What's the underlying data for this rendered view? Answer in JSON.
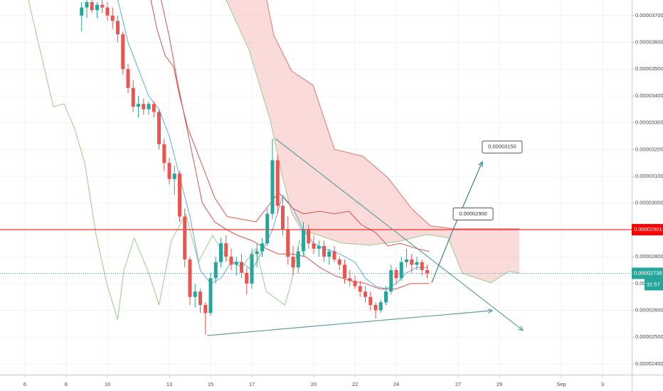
{
  "chart_data": {
    "type": "candlestick",
    "up_color": "#26a69a",
    "down_color": "#ef5350",
    "grid": true,
    "xlim": [
      4.793,
      35.414
    ],
    "xticks": [
      6,
      8,
      10,
      13,
      15,
      17,
      20,
      22,
      24,
      27,
      29,
      {
        "value": 32,
        "label": "Sep"
      },
      {
        "value": 34,
        "label": "3"
      }
    ],
    "ylim": [
      2.36e-05,
      3.758e-05
    ],
    "yticks": [
      {
        "value": 2.4e-05,
        "label": "0.00002400"
      },
      {
        "value": 2.5e-05,
        "label": "0.00002500"
      },
      {
        "value": 2.6e-05,
        "label": "0.00002600"
      },
      {
        "value": 2.7e-05,
        "label": "0.00002700"
      },
      {
        "value": 2.8e-05,
        "label": "0.00002800"
      },
      {
        "value": 2.9e-05,
        "label": "0.00002900"
      },
      {
        "value": 3e-05,
        "label": "0.00003000"
      },
      {
        "value": 3.1e-05,
        "label": "0.00003100"
      },
      {
        "value": 3.2e-05,
        "label": "0.00003200"
      },
      {
        "value": 3.3e-05,
        "label": "0.00003300"
      },
      {
        "value": 3.4e-05,
        "label": "0.00003400"
      },
      {
        "value": 3.5e-05,
        "label": "0.00003500"
      },
      {
        "value": 3.6e-05,
        "label": "0.00003600"
      },
      {
        "value": 3.7e-05,
        "label": "0.00003700"
      }
    ],
    "x": [
      8.75,
      9,
      9.25,
      9.5,
      9.75,
      10,
      10.25,
      10.5,
      10.75,
      11,
      11.25,
      11.5,
      11.75,
      12,
      12.25,
      12.5,
      12.75,
      13,
      13.25,
      13.5,
      13.75,
      14,
      14.25,
      14.5,
      14.75,
      15,
      15.25,
      15.5,
      15.75,
      16,
      16.25,
      16.5,
      16.75,
      17,
      17.25,
      17.5,
      17.75,
      18,
      18.25,
      18.5,
      18.75,
      19,
      19.25,
      19.5,
      19.75,
      20,
      20.25,
      20.5,
      20.75,
      21,
      21.25,
      21.5,
      21.75,
      22,
      22.25,
      22.5,
      22.75,
      23,
      23.25,
      23.5,
      23.75,
      24,
      24.25,
      24.5,
      24.75,
      25,
      25.25,
      25.5
    ],
    "open": [
      3.7e-05,
      3.73e-05,
      3.75e-05,
      3.72e-05,
      3.74e-05,
      3.73e-05,
      3.7e-05,
      3.68e-05,
      3.63e-05,
      3.5e-05,
      3.43e-05,
      3.36e-05,
      3.37e-05,
      3.35e-05,
      3.37e-05,
      3.34e-05,
      3.22e-05,
      3.15e-05,
      3.09e-05,
      3.11e-05,
      2.95e-05,
      2.79e-05,
      2.65e-05,
      2.67e-05,
      2.62e-05,
      2.59e-05,
      2.72e-05,
      2.78e-05,
      2.85e-05,
      2.8e-05,
      2.77e-05,
      2.78e-05,
      2.74e-05,
      2.7e-05,
      2.81e-05,
      2.82e-05,
      2.85e-05,
      2.96e-05,
      3.16e-05,
      2.99e-05,
      2.9e-05,
      2.8e-05,
      2.76e-05,
      2.82e-05,
      2.9e-05,
      2.85e-05,
      2.83e-05,
      2.84e-05,
      2.8e-05,
      2.82e-05,
      2.79e-05,
      2.77e-05,
      2.72e-05,
      2.71e-05,
      2.69e-05,
      2.67e-05,
      2.65e-05,
      2.62e-05,
      2.6e-05,
      2.63e-05,
      2.67e-05,
      2.75e-05,
      2.72e-05,
      2.78e-05,
      2.79e-05,
      2.77e-05,
      2.78e-05,
      2.75e-05
    ],
    "high": [
      3.75e-05,
      3.76e-05,
      3.76e-05,
      3.75e-05,
      3.76e-05,
      3.75e-05,
      3.73e-05,
      3.7e-05,
      3.64e-05,
      3.52e-05,
      3.46e-05,
      3.4e-05,
      3.39e-05,
      3.38e-05,
      3.38e-05,
      3.35e-05,
      3.24e-05,
      3.17e-05,
      3.14e-05,
      3.12e-05,
      2.98e-05,
      2.8e-05,
      2.7e-05,
      2.68e-05,
      2.63e-05,
      2.74e-05,
      2.8e-05,
      2.87e-05,
      2.88e-05,
      2.83e-05,
      2.8e-05,
      2.81e-05,
      2.76e-05,
      2.83e-05,
      2.85e-05,
      2.87e-05,
      2.98e-05,
      3.24e-05,
      3.18e-05,
      3.02e-05,
      2.95e-05,
      2.84e-05,
      2.84e-05,
      2.93e-05,
      2.92e-05,
      2.88e-05,
      2.86e-05,
      2.86e-05,
      2.83e-05,
      2.84e-05,
      2.8e-05,
      2.79e-05,
      2.75e-05,
      2.73e-05,
      2.71e-05,
      2.69e-05,
      2.67e-05,
      2.63e-05,
      2.64e-05,
      2.69e-05,
      2.77e-05,
      2.76e-05,
      2.8e-05,
      2.83e-05,
      2.81e-05,
      2.8e-05,
      2.79e-05,
      2.77e-05
    ],
    "low": [
      3.64e-05,
      3.69e-05,
      3.71e-05,
      3.69e-05,
      3.71e-05,
      3.68e-05,
      3.65e-05,
      3.6e-05,
      3.48e-05,
      3.41e-05,
      3.34e-05,
      3.32e-05,
      3.33e-05,
      3.33e-05,
      3.32e-05,
      3.2e-05,
      3.12e-05,
      3.07e-05,
      3.03e-05,
      2.93e-05,
      2.76e-05,
      2.62e-05,
      2.61e-05,
      2.59e-05,
      2.51e-05,
      2.58e-05,
      2.7e-05,
      2.76e-05,
      2.78e-05,
      2.75e-05,
      2.73e-05,
      2.72e-05,
      2.66e-05,
      2.68e-05,
      2.76e-05,
      2.8e-05,
      2.84e-05,
      2.94e-05,
      2.96e-05,
      2.88e-05,
      2.77e-05,
      2.73e-05,
      2.74e-05,
      2.8e-05,
      2.83e-05,
      2.81e-05,
      2.8e-05,
      2.78e-05,
      2.77e-05,
      2.78e-05,
      2.75e-05,
      2.7e-05,
      2.69e-05,
      2.68e-05,
      2.65e-05,
      2.63e-05,
      2.6e-05,
      2.57e-05,
      2.59e-05,
      2.62e-05,
      2.66e-05,
      2.7e-05,
      2.71e-05,
      2.76e-05,
      2.74e-05,
      2.75e-05,
      2.73e-05,
      2.72e-05
    ],
    "close": [
      3.73e-05,
      3.75e-05,
      3.72e-05,
      3.74e-05,
      3.73e-05,
      3.7e-05,
      3.68e-05,
      3.63e-05,
      3.5e-05,
      3.43e-05,
      3.36e-05,
      3.37e-05,
      3.35e-05,
      3.37e-05,
      3.34e-05,
      3.22e-05,
      3.15e-05,
      3.09e-05,
      3.11e-05,
      2.95e-05,
      2.79e-05,
      2.65e-05,
      2.67e-05,
      2.62e-05,
      2.59e-05,
      2.72e-05,
      2.78e-05,
      2.85e-05,
      2.8e-05,
      2.77e-05,
      2.78e-05,
      2.74e-05,
      2.7e-05,
      2.81e-05,
      2.82e-05,
      2.85e-05,
      2.96e-05,
      3.16e-05,
      2.99e-05,
      2.9e-05,
      2.8e-05,
      2.76e-05,
      2.82e-05,
      2.9e-05,
      2.85e-05,
      2.83e-05,
      2.84e-05,
      2.8e-05,
      2.82e-05,
      2.79e-05,
      2.77e-05,
      2.72e-05,
      2.71e-05,
      2.69e-05,
      2.67e-05,
      2.65e-05,
      2.62e-05,
      2.6e-05,
      2.63e-05,
      2.67e-05,
      2.75e-05,
      2.72e-05,
      2.78e-05,
      2.79e-05,
      2.77e-05,
      2.78e-05,
      2.75e-05,
      2.738e-05
    ],
    "cloud": {
      "color": "#f8bcbc",
      "span_a": {
        "color": "#9ccc8a",
        "x": [
          15.76,
          16.86,
          17.9,
          18.41,
          18.93,
          19.45,
          20.14,
          21.34,
          22.72,
          24.1,
          25.48,
          26.52,
          27.21,
          28.59,
          29.45,
          29.97
        ],
        "values": [
          3.758e-05,
          3.573e-05,
          3.307e-05,
          3.122e-05,
          2.963e-05,
          2.896e-05,
          2.883e-05,
          2.851e-05,
          2.843e-05,
          2.857e-05,
          2.883e-05,
          2.87e-05,
          2.737e-05,
          2.703e-05,
          2.745e-05,
          2.74e-05
        ]
      },
      "span_b": {
        "color": "#e57373",
        "x": [
          17.72,
          18.07,
          18.93,
          19.97,
          21.0,
          22.38,
          23.59,
          24.79,
          25.66,
          26.86,
          29.97
        ],
        "values": [
          3.758e-05,
          3.626e-05,
          3.493e-05,
          3.44e-05,
          3.201e-05,
          3.175e-05,
          3.095e-05,
          2.976e-05,
          2.915e-05,
          2.904e-05,
          2.904e-05
        ]
      }
    },
    "lines": [
      {
        "color": "#5aace0",
        "x": [
          10.5,
          11,
          12,
          12.5,
          13,
          13.5,
          14,
          14.5,
          15,
          15.5,
          16,
          16.5,
          17,
          17.5,
          18,
          18.5,
          19,
          19.5,
          20,
          20.5,
          21,
          21.5,
          22,
          22.5,
          23,
          23.5,
          24,
          24.5,
          25,
          25.5
        ],
        "values": [
          3.76e-05,
          3.6e-05,
          3.4e-05,
          3.35e-05,
          3.25e-05,
          3.1e-05,
          2.95e-05,
          2.75e-05,
          2.7e-05,
          2.72e-05,
          2.78e-05,
          2.78e-05,
          2.75e-05,
          2.82e-05,
          2.9e-05,
          3.03e-05,
          2.98e-05,
          2.9e-05,
          2.85e-05,
          2.83e-05,
          2.82e-05,
          2.8e-05,
          2.78e-05,
          2.72e-05,
          2.69e-05,
          2.68e-05,
          2.7e-05,
          2.74e-05,
          2.76e-05,
          2.76e-05
        ]
      },
      {
        "color": "#d9534f",
        "x": [
          12.1,
          12.4,
          12.8,
          13.2,
          13.5,
          13.9,
          14.3,
          14.8,
          15.2,
          15.8,
          16.5,
          17.2,
          17.8,
          18.3,
          19,
          19.5,
          20.3,
          21,
          21.7,
          22.3,
          23,
          23.6,
          24.2,
          25,
          25.6
        ],
        "values": [
          3.76e-05,
          3.65e-05,
          3.55e-05,
          3.51e-05,
          3.4e-05,
          3.28e-05,
          3.2e-05,
          3.1e-05,
          3.02e-05,
          2.95e-05,
          2.94e-05,
          2.93e-05,
          2.99e-05,
          3.04e-05,
          2.98e-05,
          2.96e-05,
          2.97e-05,
          2.96e-05,
          2.97e-05,
          2.92e-05,
          2.89e-05,
          2.84e-05,
          2.85e-05,
          2.83e-05,
          2.82e-05
        ]
      },
      {
        "color": "#d9534f",
        "x": [
          12.6,
          13.0,
          13.4,
          13.8,
          14.2,
          14.6,
          15.2,
          15.8,
          16.3,
          17,
          17.7,
          18.3,
          19,
          19.6,
          20.3,
          21,
          21.8,
          22.5,
          23.2,
          24,
          24.7,
          25.3,
          25.6
        ],
        "values": [
          3.76e-05,
          3.62e-05,
          3.45e-05,
          3.3e-05,
          3.15e-05,
          3e-05,
          2.93e-05,
          2.9e-05,
          2.88e-05,
          2.86e-05,
          2.83e-05,
          2.81e-05,
          2.81e-05,
          2.8e-05,
          2.76e-05,
          2.73e-05,
          2.71e-05,
          2.7e-05,
          2.68e-05,
          2.68e-05,
          2.7e-05,
          2.7e-05,
          2.7e-05
        ]
      },
      {
        "color": "#9ccc8a",
        "x": [
          6.17,
          6.45,
          7.38,
          7.9,
          8.4,
          8.9,
          9.45,
          9.97,
          10.5,
          10.8,
          11.3,
          12.0,
          12.5,
          13.1,
          13.8,
          14.4,
          15.1,
          15.8,
          16.5,
          17.2,
          17.7,
          18.6,
          18.9,
          19.3,
          19.6
        ],
        "values": [
          3.758e-05,
          3.665e-05,
          3.36e-05,
          3.37e-05,
          3.28e-05,
          3.15e-05,
          2.88e-05,
          2.7e-05,
          2.565e-05,
          2.75e-05,
          2.87e-05,
          2.74e-05,
          2.62e-05,
          2.86e-05,
          2.96e-05,
          2.78e-05,
          2.88e-05,
          2.79e-05,
          2.76e-05,
          2.83e-05,
          2.67e-05,
          2.62e-05,
          2.7e-05,
          2.86e-05,
          2.8e-05
        ]
      }
    ],
    "drawings": [
      {
        "color": "#5f9ea0",
        "x": [
          18.14,
          30.14
        ],
        "values": [
          3.241e-05,
          2.525e-05
        ]
      },
      {
        "color": "#5f9ea0",
        "x": [
          14.83,
          28.66
        ],
        "values": [
          2.506e-05,
          2.599e-05
        ]
      },
      {
        "color": "#3d7f88",
        "x": [
          25.72,
          26.76,
          28.17
        ],
        "values": [
          2.703e-05,
          2.902e-05,
          3.154e-05
        ]
      }
    ],
    "targets": [
      {
        "x": 26.76,
        "value": 2.9e-05,
        "label": "0.00002900"
      },
      {
        "x": 28.17,
        "value": 3.15e-05,
        "label": "0.00003150"
      }
    ],
    "price_lines": [
      {
        "value": 2.901e-05,
        "label": "0.00002901",
        "color": "#ff0000",
        "style": "solid"
      },
      {
        "value": 2.738e-05,
        "label": "0.00002738",
        "color": "#26a69a",
        "style": "dotted"
      }
    ],
    "countdown": "31:57"
  }
}
